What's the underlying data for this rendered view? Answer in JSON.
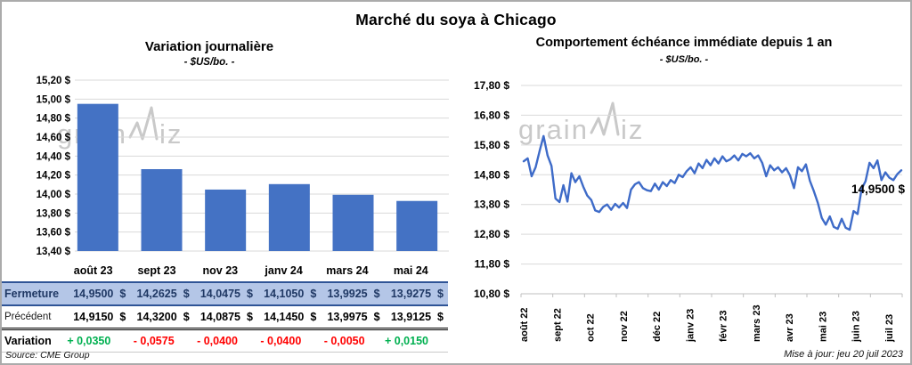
{
  "title": "Marché du soya à Chicago",
  "meta": {
    "source": "Source: CME Group",
    "updated": "Mise à jour: jeu 20 juil 2023"
  },
  "watermark": {
    "text1": "grain",
    "text2": "iz",
    "color": "#C9C9C9"
  },
  "colors": {
    "bar": "#4472C4",
    "line": "#3E6BC8",
    "grid": "#D9D9D9",
    "axis": "#BFBFBF",
    "navy": "#1F3864",
    "close_row_bg": "#B4C6E7",
    "positive": "#00B050",
    "negative": "#FF0000"
  },
  "chart_data": [
    {
      "type": "bar",
      "title": "Variation journalière",
      "subtitle": "- $US/bo. -",
      "categories": [
        "août 23",
        "sept 23",
        "nov 23",
        "janv 24",
        "mars 24",
        "mai 24"
      ],
      "values": [
        14.95,
        14.2625,
        14.0475,
        14.105,
        13.9925,
        13.9275
      ],
      "ylabel": "$US/bo.",
      "ylim": [
        13.4,
        15.2
      ],
      "ytick_step": 0.2,
      "ytick_labels": [
        "15,20 $",
        "15,00 $",
        "14,80 $",
        "14,60 $",
        "14,40 $",
        "14,20 $",
        "14,00 $",
        "13,80 $",
        "13,60 $",
        "13,40 $"
      ],
      "grid": true,
      "legend": "none"
    },
    {
      "type": "line",
      "title": "Comportement échéance immédiate depuis 1 an",
      "subtitle": "- $US/bo. -",
      "x_labels": [
        "août 22",
        "sept 22",
        "oct 22",
        "nov 22",
        "déc 22",
        "janv 23",
        "févr 23",
        "mars 23",
        "avr 23",
        "mai 23",
        "juin 23",
        "juil 23"
      ],
      "values": [
        15.25,
        15.35,
        14.75,
        15.05,
        15.6,
        16.1,
        15.45,
        15.1,
        14.0,
        13.88,
        14.45,
        13.9,
        14.85,
        14.55,
        14.75,
        14.4,
        14.1,
        13.95,
        13.6,
        13.55,
        13.72,
        13.8,
        13.62,
        13.82,
        13.7,
        13.85,
        13.68,
        14.3,
        14.48,
        14.55,
        14.35,
        14.28,
        14.25,
        14.5,
        14.3,
        14.55,
        14.42,
        14.62,
        14.52,
        14.8,
        14.72,
        14.92,
        15.05,
        14.85,
        15.18,
        15.02,
        15.3,
        15.12,
        15.35,
        15.18,
        15.42,
        15.25,
        15.32,
        15.45,
        15.28,
        15.5,
        15.42,
        15.52,
        15.35,
        15.45,
        15.2,
        14.75,
        15.12,
        14.95,
        15.05,
        14.88,
        15.02,
        14.78,
        14.35,
        15.05,
        14.92,
        15.15,
        14.6,
        14.25,
        13.85,
        13.35,
        13.12,
        13.4,
        13.05,
        12.98,
        13.32,
        13.02,
        12.95,
        13.58,
        13.48,
        14.32,
        14.58,
        15.2,
        15.02,
        15.28,
        14.62,
        14.88,
        14.7,
        14.62,
        14.82,
        14.95
      ],
      "ylabel": "$US/bo.",
      "ylim": [
        10.8,
        17.8
      ],
      "ytick_step": 1.0,
      "ytick_labels": [
        "17,80 $",
        "16,80 $",
        "15,80 $",
        "14,80 $",
        "13,80 $",
        "12,80 $",
        "11,80 $",
        "10,80 $"
      ],
      "annotation": "14,9500 $",
      "grid": true,
      "legend": "none"
    },
    {
      "type": "table",
      "columns": [
        "",
        "août 23",
        "sept 23",
        "nov 23",
        "janv 24",
        "mars 24",
        "mai 24"
      ],
      "rows": [
        {
          "label": "Fermeture",
          "style": "close",
          "values": [
            "14,9500 $",
            "14,2625 $",
            "14,0475 $",
            "14,1050 $",
            "13,9925 $",
            "13,9275 $"
          ]
        },
        {
          "label": "Précédent",
          "style": "prev",
          "values": [
            "14,9150 $",
            "14,3200 $",
            "14,0875 $",
            "14,1450 $",
            "13,9975 $",
            "13,9125 $"
          ]
        },
        {
          "label": "Variation",
          "style": "var",
          "values": [
            "+ 0,0350",
            "- 0,0575",
            "- 0,0400",
            "- 0,0400",
            "- 0,0050",
            "+ 0,0150"
          ]
        }
      ]
    }
  ]
}
